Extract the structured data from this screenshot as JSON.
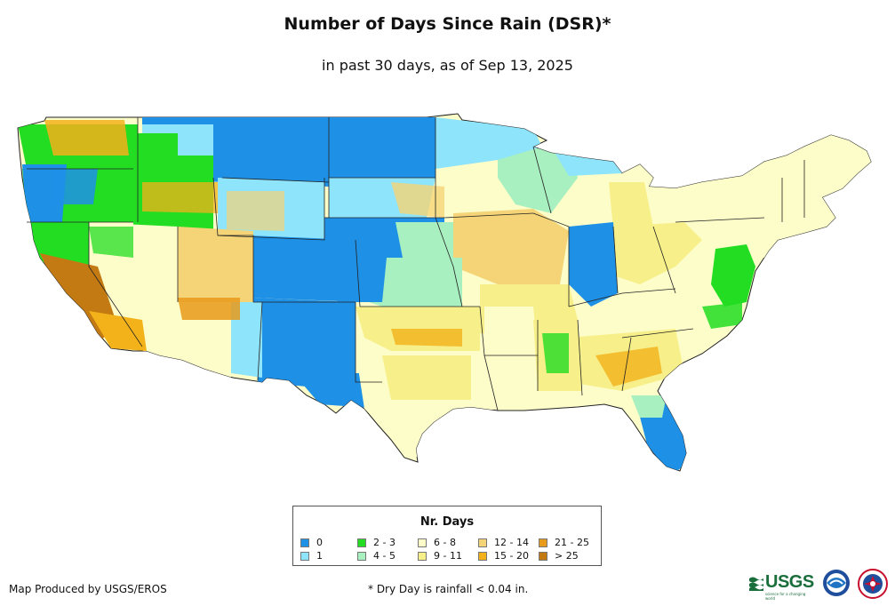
{
  "header": {
    "title": "Number of Days Since Rain (DSR)*",
    "subtitle": "in past 30 days, as of Sep 13, 2025"
  },
  "legend": {
    "title": "Nr. Days",
    "items": [
      {
        "label": "0",
        "color": "#1e90e6"
      },
      {
        "label": "1",
        "color": "#8ee4fa"
      },
      {
        "label": "2 - 3",
        "color": "#22dd22"
      },
      {
        "label": "4 - 5",
        "color": "#a8f0c0"
      },
      {
        "label": "6 - 8",
        "color": "#fdfdca"
      },
      {
        "label": "9 - 11",
        "color": "#f7f08a"
      },
      {
        "label": "12 - 14",
        "color": "#f5d477"
      },
      {
        "label": "15 - 20",
        "color": "#f3b21a"
      },
      {
        "label": "21 - 25",
        "color": "#e89a1a"
      },
      {
        "label": "> 25",
        "color": "#c47a12"
      }
    ]
  },
  "footer": {
    "credit": "Map Produced by USGS/EROS",
    "footnote": "* Dry Day is rainfall < 0.04 in."
  },
  "logos": {
    "usgs": "USGS",
    "usgs_tagline": "science for a changing world",
    "noaa_icon": "noaa-seal-icon",
    "nws_icon": "nws-seal-icon"
  }
}
